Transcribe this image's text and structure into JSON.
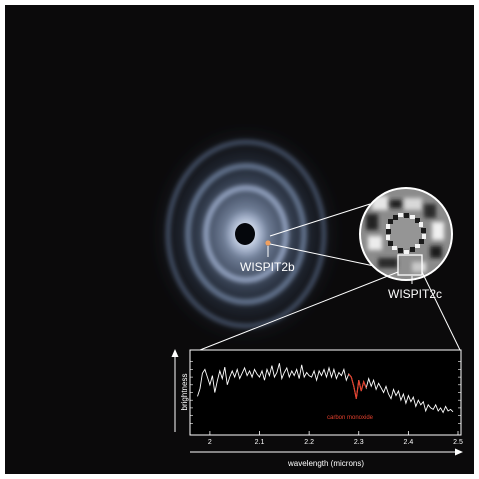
{
  "labels": {
    "planet_b": "WISPIT2b",
    "planet_c": "WISPIT2c",
    "y_axis": "brightness",
    "x_axis": "wavelength (microns)",
    "annotation": "carbon monoxide"
  },
  "colors": {
    "background": "#0b0a0b",
    "frame": "#ffffff",
    "disk_glow": "#8fb0e0",
    "spectrum": "#ffffff",
    "co_highlight": "#e2402d",
    "planet_b_dot": "#f0a060"
  },
  "chart_data": {
    "type": "line",
    "xlabel": "wavelength (microns)",
    "ylabel": "brightness",
    "xlim": [
      1.97,
      2.5
    ],
    "ylim": [
      0,
      10
    ],
    "x_ticks": [
      "2",
      "2.1",
      "2.2",
      "2.3",
      "2.4",
      "2.5"
    ],
    "x_tick_values": [
      2.0,
      2.1,
      2.2,
      2.3,
      2.4,
      2.5
    ],
    "series": [
      {
        "x": [
          1.975,
          1.98,
          1.985,
          1.99,
          1.995,
          2.0,
          2.005,
          2.01,
          2.015,
          2.02,
          2.025,
          2.03,
          2.035,
          2.04,
          2.045,
          2.05,
          2.055,
          2.06,
          2.065,
          2.07,
          2.075,
          2.08,
          2.085,
          2.09,
          2.095,
          2.1,
          2.105,
          2.11,
          2.115,
          2.12,
          2.125,
          2.13,
          2.135,
          2.14,
          2.145,
          2.15,
          2.155,
          2.16,
          2.165,
          2.17,
          2.175,
          2.18,
          2.185,
          2.19,
          2.195,
          2.2,
          2.205,
          2.21,
          2.215,
          2.22,
          2.225,
          2.23,
          2.235,
          2.24,
          2.245,
          2.25,
          2.255,
          2.26,
          2.265,
          2.27,
          2.275,
          2.28,
          2.285,
          2.29,
          2.295,
          2.3,
          2.305,
          2.31,
          2.315,
          2.32,
          2.325,
          2.33,
          2.335,
          2.34,
          2.345,
          2.35,
          2.355,
          2.36,
          2.365,
          2.37,
          2.375,
          2.38,
          2.385,
          2.39,
          2.395,
          2.4,
          2.405,
          2.41,
          2.415,
          2.42,
          2.425,
          2.43,
          2.435,
          2.44,
          2.445,
          2.45,
          2.455,
          2.46,
          2.465,
          2.47,
          2.475,
          2.48,
          2.485,
          2.49
        ],
        "y": [
          4.5,
          5.5,
          7.5,
          8.0,
          7.0,
          6.0,
          7.2,
          5.0,
          6.5,
          7.8,
          6.8,
          8.3,
          6.0,
          7.0,
          7.8,
          7.0,
          8.0,
          6.8,
          7.5,
          8.2,
          7.2,
          7.8,
          7.0,
          8.0,
          7.4,
          7.0,
          7.8,
          6.6,
          8.0,
          7.2,
          8.5,
          7.0,
          7.6,
          8.8,
          6.8,
          7.6,
          8.2,
          7.0,
          7.8,
          7.2,
          8.0,
          6.8,
          8.6,
          7.0,
          7.6,
          7.2,
          7.0,
          7.8,
          6.6,
          7.8,
          7.2,
          8.0,
          7.0,
          8.2,
          7.0,
          8.0,
          6.8,
          7.6,
          7.2,
          8.0,
          6.6,
          7.4,
          7.0,
          5.8,
          4.2,
          6.6,
          5.2,
          6.4,
          5.6,
          6.8,
          5.8,
          6.6,
          5.4,
          6.2,
          5.6,
          5.0,
          5.8,
          4.8,
          4.2,
          5.4,
          4.6,
          5.2,
          4.0,
          4.8,
          3.6,
          4.6,
          3.8,
          4.4,
          3.2,
          4.0,
          3.4,
          3.8,
          2.6,
          3.4,
          3.0,
          2.8,
          3.4,
          2.6,
          3.0,
          2.4,
          3.2,
          2.6,
          2.8,
          2.5
        ],
        "highlight_range": [
          2.28,
          2.315
        ]
      }
    ]
  }
}
